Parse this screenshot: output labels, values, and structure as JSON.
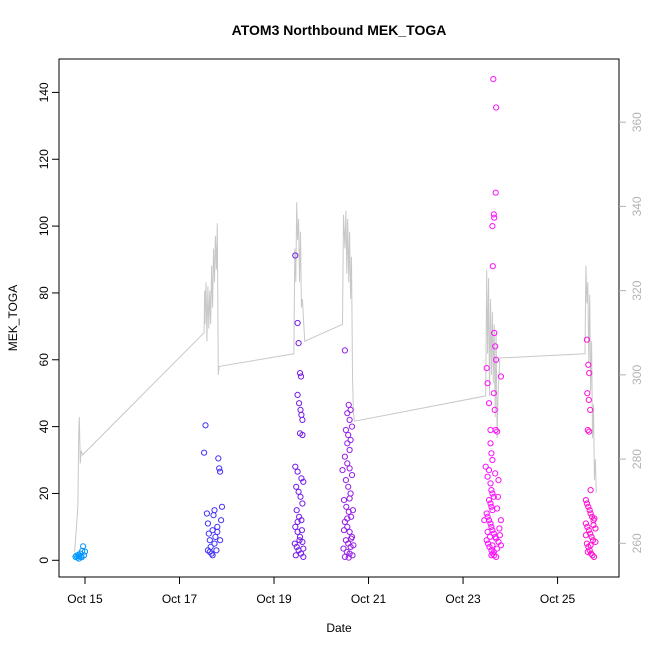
{
  "chart_data": {
    "type": "scatter",
    "title": "ATOM3 Northbound MEK_TOGA",
    "xlabel": "Date",
    "ylabel": "MEK_TOGA",
    "x_ticks": [
      "Oct 15",
      "Oct 17",
      "Oct 19",
      "Oct 21",
      "Oct 23",
      "Oct 25"
    ],
    "x_tick_days": [
      15,
      17,
      19,
      21,
      23,
      25
    ],
    "xlim": [
      14.45,
      26.3
    ],
    "y_ticks": [
      0,
      20,
      40,
      60,
      80,
      100,
      120,
      140
    ],
    "ylim": [
      -5,
      150
    ],
    "y2_ticks": [
      260,
      280,
      300,
      320,
      340,
      360
    ],
    "y2lim": [
      252,
      375
    ],
    "grid": false,
    "colors": {
      "line": "#c8c8c8",
      "point_gradient": [
        "#00a0ff",
        "#3040ff",
        "#6a1ee8",
        "#b020e8",
        "#ff10ff",
        "#ff10d0"
      ]
    },
    "series": [
      {
        "axis": "left",
        "points": [
          [
            14.8,
            1.0
          ],
          [
            14.82,
            1.4
          ],
          [
            14.84,
            0.8
          ],
          [
            14.86,
            1.6
          ],
          [
            14.88,
            1.2
          ],
          [
            14.9,
            2.0
          ],
          [
            14.92,
            1.1
          ],
          [
            14.94,
            2.8
          ],
          [
            14.96,
            4.2
          ],
          [
            14.98,
            1.5
          ],
          [
            15.0,
            2.6
          ],
          [
            14.87,
            0.5
          ],
          [
            14.93,
            0.9
          ],
          [
            17.55,
            40.4
          ],
          [
            17.52,
            32.2
          ],
          [
            17.58,
            14.0
          ],
          [
            17.6,
            11.0
          ],
          [
            17.62,
            8.0
          ],
          [
            17.64,
            6.0
          ],
          [
            17.66,
            4.0
          ],
          [
            17.68,
            2.0
          ],
          [
            17.7,
            9.0
          ],
          [
            17.72,
            13.5
          ],
          [
            17.74,
            15.0
          ],
          [
            17.76,
            7.0
          ],
          [
            17.78,
            3.0
          ],
          [
            17.8,
            10.0
          ],
          [
            17.82,
            30.5
          ],
          [
            17.84,
            27.5
          ],
          [
            17.86,
            26.5
          ],
          [
            17.88,
            12.0
          ],
          [
            17.9,
            16.0
          ],
          [
            17.6,
            3.0
          ],
          [
            17.64,
            2.5
          ],
          [
            17.7,
            1.5
          ],
          [
            17.74,
            5.0
          ],
          [
            17.8,
            8.5
          ],
          [
            17.86,
            6.0
          ],
          [
            19.45,
            91.2
          ],
          [
            19.5,
            71.0
          ],
          [
            19.52,
            65.0
          ],
          [
            19.55,
            56.0
          ],
          [
            19.57,
            55.0
          ],
          [
            19.5,
            49.5
          ],
          [
            19.53,
            47.0
          ],
          [
            19.56,
            45.0
          ],
          [
            19.58,
            43.5
          ],
          [
            19.6,
            42.0
          ],
          [
            19.55,
            38.0
          ],
          [
            19.6,
            37.5
          ],
          [
            19.45,
            28.0
          ],
          [
            19.5,
            26.5
          ],
          [
            19.58,
            24.5
          ],
          [
            19.62,
            23.5
          ],
          [
            19.47,
            22.0
          ],
          [
            19.52,
            20.5
          ],
          [
            19.56,
            19.0
          ],
          [
            19.6,
            17.0
          ],
          [
            19.48,
            15.0
          ],
          [
            19.53,
            13.0
          ],
          [
            19.58,
            12.0
          ],
          [
            19.45,
            10.0
          ],
          [
            19.5,
            8.5
          ],
          [
            19.55,
            7.0
          ],
          [
            19.6,
            5.5
          ],
          [
            19.48,
            4.0
          ],
          [
            19.52,
            3.0
          ],
          [
            19.57,
            2.0
          ],
          [
            19.62,
            1.0
          ],
          [
            19.46,
            1.5
          ],
          [
            19.54,
            6.0
          ],
          [
            19.59,
            9.0
          ],
          [
            19.5,
            11.5
          ],
          [
            19.44,
            5.0
          ],
          [
            19.62,
            3.5
          ],
          [
            20.5,
            62.8
          ],
          [
            20.58,
            46.5
          ],
          [
            20.62,
            45.0
          ],
          [
            20.55,
            44.0
          ],
          [
            20.6,
            42.0
          ],
          [
            20.65,
            40.0
          ],
          [
            20.52,
            39.0
          ],
          [
            20.57,
            37.5
          ],
          [
            20.62,
            36.0
          ],
          [
            20.55,
            35.0
          ],
          [
            20.6,
            33.0
          ],
          [
            20.5,
            31.0
          ],
          [
            20.55,
            29.0
          ],
          [
            20.6,
            27.5
          ],
          [
            20.65,
            25.5
          ],
          [
            20.52,
            24.0
          ],
          [
            20.57,
            22.0
          ],
          [
            20.62,
            20.0
          ],
          [
            20.48,
            18.0
          ],
          [
            20.53,
            16.0
          ],
          [
            20.58,
            14.5
          ],
          [
            20.63,
            13.0
          ],
          [
            20.5,
            11.5
          ],
          [
            20.55,
            10.0
          ],
          [
            20.6,
            8.5
          ],
          [
            20.65,
            7.0
          ],
          [
            20.52,
            6.0
          ],
          [
            20.57,
            5.0
          ],
          [
            20.62,
            4.0
          ],
          [
            20.47,
            3.5
          ],
          [
            20.54,
            2.5
          ],
          [
            20.6,
            2.0
          ],
          [
            20.66,
            1.5
          ],
          [
            20.5,
            1.0
          ],
          [
            20.58,
            0.8
          ],
          [
            20.63,
            6.5
          ],
          [
            20.68,
            4.5
          ],
          [
            20.55,
            12.5
          ],
          [
            20.6,
            18.5
          ],
          [
            20.45,
            27.0
          ],
          [
            20.67,
            15.0
          ],
          [
            20.48,
            9.0
          ],
          [
            23.5,
            57.5
          ],
          [
            23.52,
            53.0
          ],
          [
            23.55,
            47.0
          ],
          [
            23.58,
            39.0
          ],
          [
            23.6,
            32.0
          ],
          [
            23.62,
            30.0
          ],
          [
            23.55,
            27.0
          ],
          [
            23.52,
            25.0
          ],
          [
            23.58,
            23.0
          ],
          [
            23.6,
            21.0
          ],
          [
            23.62,
            20.0
          ],
          [
            23.65,
            19.0
          ],
          [
            23.55,
            18.0
          ],
          [
            23.58,
            17.0
          ],
          [
            23.6,
            16.0
          ],
          [
            23.62,
            15.0
          ],
          [
            23.5,
            14.0
          ],
          [
            23.52,
            13.0
          ],
          [
            23.55,
            12.0
          ],
          [
            23.58,
            11.0
          ],
          [
            23.6,
            10.0
          ],
          [
            23.62,
            9.0
          ],
          [
            23.65,
            8.0
          ],
          [
            23.68,
            7.0
          ],
          [
            23.5,
            6.0
          ],
          [
            23.53,
            5.0
          ],
          [
            23.56,
            4.0
          ],
          [
            23.6,
            3.0
          ],
          [
            23.63,
            2.0
          ],
          [
            23.66,
            1.5
          ],
          [
            23.7,
            1.0
          ],
          [
            23.72,
            3.5
          ],
          [
            23.75,
            5.5
          ],
          [
            23.78,
            7.5
          ],
          [
            23.8,
            12.0
          ],
          [
            23.72,
            15.5
          ],
          [
            23.68,
            26.0
          ],
          [
            23.75,
            24.0
          ],
          [
            23.8,
            55.0
          ],
          [
            23.72,
            38.5
          ],
          [
            23.69,
            39.0
          ],
          [
            23.66,
            68.0
          ],
          [
            23.68,
            64.0
          ],
          [
            23.7,
            60.0
          ],
          [
            23.65,
            103.5
          ],
          [
            23.66,
            102.5
          ],
          [
            23.69,
            110.0
          ],
          [
            23.63,
            88.0
          ],
          [
            23.64,
            144.0
          ],
          [
            23.7,
            135.5
          ],
          [
            23.62,
            100.0
          ],
          [
            23.65,
            50.0
          ],
          [
            23.67,
            45.0
          ],
          [
            23.58,
            35.0
          ],
          [
            23.48,
            28.0
          ],
          [
            23.45,
            12.0
          ],
          [
            23.74,
            19.0
          ],
          [
            23.77,
            9.5
          ],
          [
            23.8,
            4.5
          ],
          [
            23.7,
            6.5
          ],
          [
            23.65,
            2.5
          ],
          [
            23.57,
            7.0
          ],
          [
            23.62,
            4.5
          ],
          [
            23.52,
            8.5
          ],
          [
            23.6,
            1.5
          ],
          [
            25.62,
            66.0
          ],
          [
            25.65,
            58.5
          ],
          [
            25.67,
            56.0
          ],
          [
            25.63,
            50.0
          ],
          [
            25.66,
            48.0
          ],
          [
            25.69,
            45.0
          ],
          [
            25.64,
            39.0
          ],
          [
            25.67,
            38.5
          ],
          [
            25.7,
            21.0
          ],
          [
            25.6,
            18.0
          ],
          [
            25.62,
            17.0
          ],
          [
            25.65,
            16.0
          ],
          [
            25.68,
            15.0
          ],
          [
            25.7,
            14.0
          ],
          [
            25.73,
            13.0
          ],
          [
            25.76,
            12.0
          ],
          [
            25.6,
            11.0
          ],
          [
            25.63,
            10.0
          ],
          [
            25.66,
            9.0
          ],
          [
            25.69,
            8.0
          ],
          [
            25.72,
            7.0
          ],
          [
            25.75,
            6.0
          ],
          [
            25.62,
            5.0
          ],
          [
            25.65,
            4.0
          ],
          [
            25.68,
            3.0
          ],
          [
            25.71,
            2.0
          ],
          [
            25.74,
            1.5
          ],
          [
            25.77,
            1.0
          ],
          [
            25.8,
            9.5
          ],
          [
            25.78,
            12.5
          ],
          [
            25.6,
            7.5
          ],
          [
            25.64,
            2.5
          ],
          [
            25.7,
            4.5
          ],
          [
            25.76,
            10.5
          ],
          [
            25.8,
            5.5
          ]
        ]
      },
      {
        "axis": "right",
        "points": [
          [
            14.78,
            258
          ],
          [
            14.82,
            264
          ],
          [
            14.85,
            269
          ],
          [
            14.87,
            287
          ],
          [
            14.88,
            290
          ],
          [
            14.9,
            279
          ],
          [
            14.92,
            282
          ],
          [
            14.95,
            281
          ],
          [
            17.52,
            310
          ],
          [
            17.53,
            320
          ],
          [
            17.54,
            312
          ],
          [
            17.56,
            322
          ],
          [
            17.58,
            308
          ],
          [
            17.6,
            321
          ],
          [
            17.62,
            311
          ],
          [
            17.64,
            320
          ],
          [
            17.66,
            312
          ],
          [
            17.68,
            326
          ],
          [
            17.7,
            316
          ],
          [
            17.72,
            330
          ],
          [
            17.74,
            322
          ],
          [
            17.76,
            333
          ],
          [
            17.78,
            325
          ],
          [
            17.8,
            336
          ],
          [
            17.82,
            300
          ],
          [
            17.84,
            302
          ],
          [
            19.42,
            305
          ],
          [
            19.44,
            330
          ],
          [
            19.46,
            322
          ],
          [
            19.48,
            341
          ],
          [
            19.5,
            332
          ],
          [
            19.52,
            337
          ],
          [
            19.54,
            322
          ],
          [
            19.56,
            334
          ],
          [
            19.58,
            316
          ],
          [
            19.6,
            318
          ],
          [
            19.65,
            308
          ],
          [
            20.45,
            312
          ],
          [
            20.47,
            338
          ],
          [
            20.5,
            330
          ],
          [
            20.52,
            339
          ],
          [
            20.54,
            324
          ],
          [
            20.56,
            337
          ],
          [
            20.58,
            322
          ],
          [
            20.6,
            334
          ],
          [
            20.62,
            318
          ],
          [
            20.64,
            328
          ],
          [
            20.66,
            300
          ],
          [
            20.68,
            291
          ],
          [
            20.7,
            289
          ],
          [
            23.48,
            295
          ],
          [
            23.5,
            325
          ],
          [
            23.52,
            305
          ],
          [
            23.54,
            323
          ],
          [
            23.56,
            295
          ],
          [
            23.58,
            318
          ],
          [
            23.6,
            300
          ],
          [
            23.62,
            315
          ],
          [
            23.64,
            298
          ],
          [
            23.66,
            312
          ],
          [
            23.68,
            290
          ],
          [
            23.7,
            310
          ],
          [
            23.72,
            285
          ],
          [
            23.74,
            295
          ],
          [
            23.78,
            304
          ],
          [
            25.58,
            305
          ],
          [
            25.6,
            326
          ],
          [
            25.62,
            317
          ],
          [
            25.64,
            322
          ],
          [
            25.66,
            303
          ],
          [
            25.68,
            319
          ],
          [
            25.7,
            296
          ],
          [
            25.72,
            308
          ],
          [
            25.74,
            285
          ],
          [
            25.76,
            293
          ],
          [
            25.78,
            275
          ],
          [
            25.8,
            280
          ],
          [
            25.82,
            272
          ]
        ]
      }
    ]
  }
}
